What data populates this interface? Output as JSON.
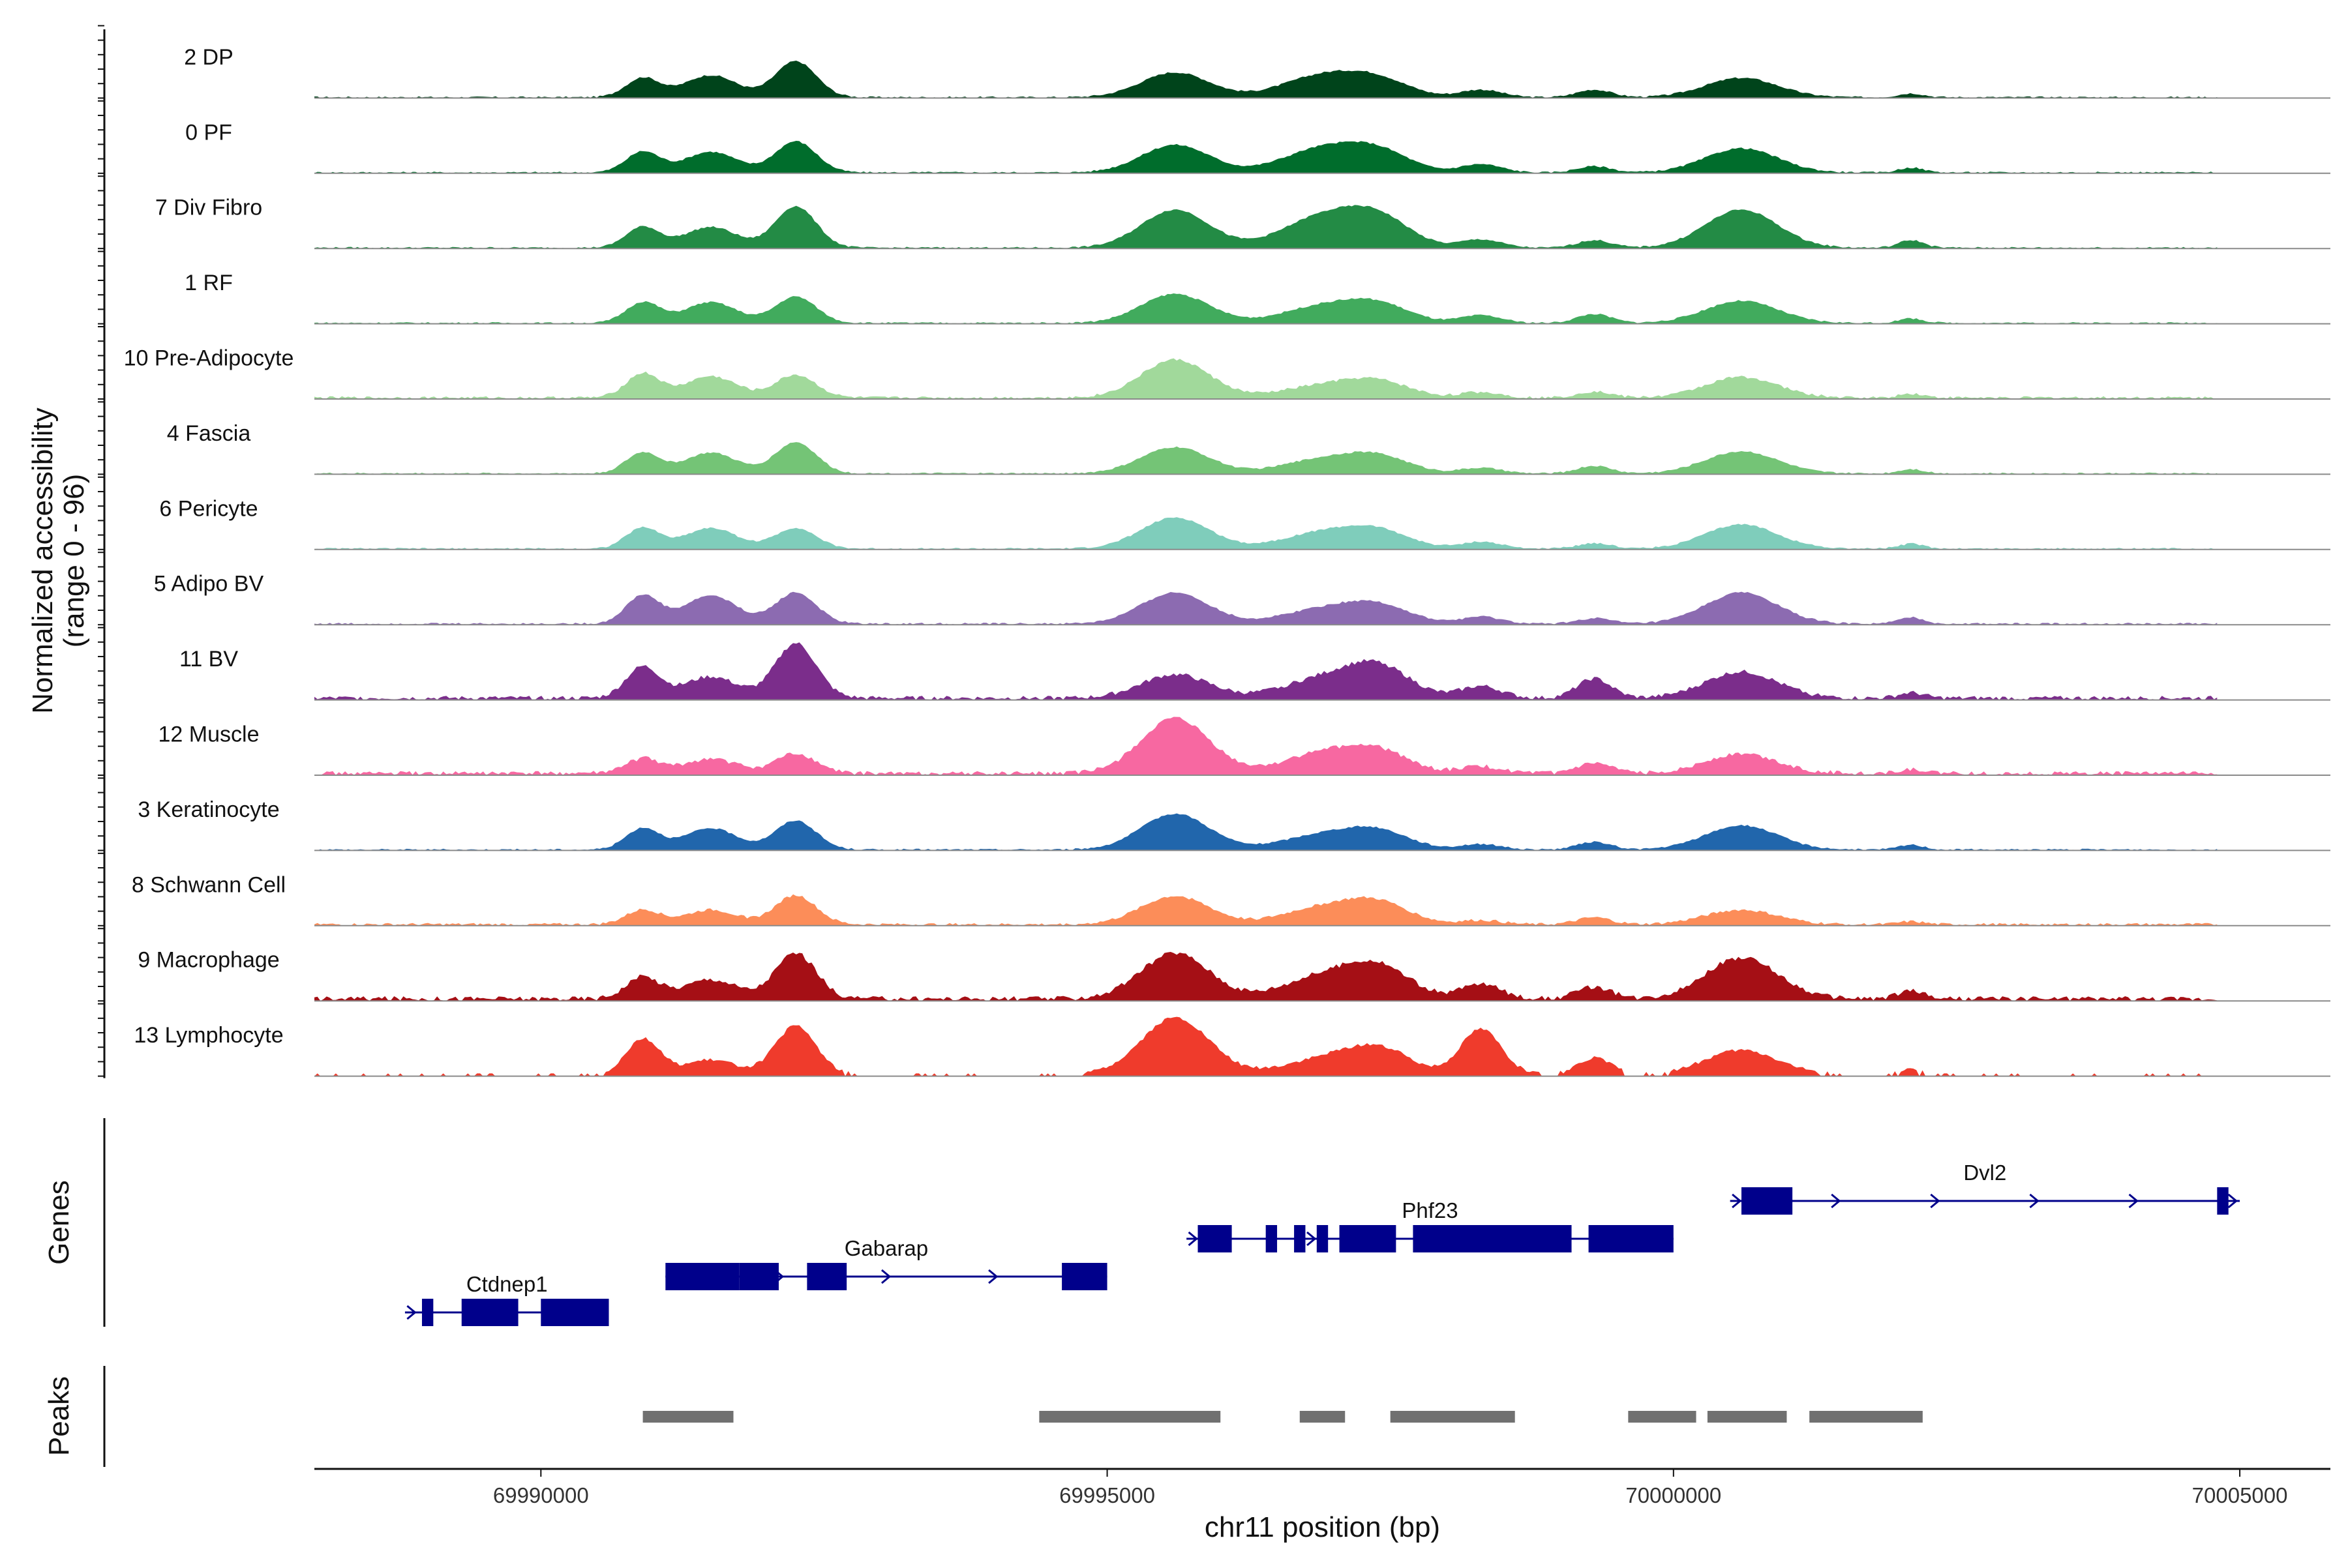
{
  "chart_data": {
    "type": "area",
    "chromosome": "chr11",
    "xlabel": "chr11 position (bp)",
    "ylabel": "Normalized accessibility",
    "ylabel_range": "(range 0 - 96)",
    "xlim": [
      69988000,
      70005800
    ],
    "x_ticks": [
      69990000,
      69995000,
      70000000,
      70005000
    ],
    "x_tick_labels": [
      "69990000",
      "69995000",
      "70000000",
      "70005000"
    ],
    "peak_regions": [
      [
        69990900,
        69991700
      ],
      [
        69994400,
        69996000
      ],
      [
        69996700,
        69997100
      ],
      [
        69997500,
        69998600
      ],
      [
        69999600,
        70000200
      ],
      [
        70000300,
        70001000
      ],
      [
        70001200,
        70002200
      ]
    ],
    "genes_track_label": "Genes",
    "peaks_track_label": "Peaks",
    "tracks": [
      {
        "label": "2 DP",
        "color": "#00441b",
        "heights": [
          0.28,
          0.32,
          0.52,
          0.36,
          0.31,
          0.22,
          0.11,
          0.11,
          0.28
        ],
        "noise": 0.025,
        "sparse": false
      },
      {
        "label": "0 PF",
        "color": "#006d2c",
        "heights": [
          0.3,
          0.3,
          0.45,
          0.4,
          0.34,
          0.27,
          0.12,
          0.09,
          0.35
        ],
        "noise": 0.025,
        "sparse": false
      },
      {
        "label": "7 Div Fibro",
        "color": "#238b45",
        "heights": [
          0.3,
          0.3,
          0.6,
          0.55,
          0.44,
          0.39,
          0.12,
          0.11,
          0.55
        ],
        "noise": 0.025,
        "sparse": false
      },
      {
        "label": "1 RF",
        "color": "#41ab5d",
        "heights": [
          0.3,
          0.3,
          0.38,
          0.42,
          0.24,
          0.24,
          0.11,
          0.13,
          0.32
        ],
        "noise": 0.025,
        "sparse": false
      },
      {
        "label": "10 Pre-Adipocyte",
        "color": "#a1d99b",
        "heights": [
          0.35,
          0.31,
          0.33,
          0.55,
          0.17,
          0.21,
          0.08,
          0.09,
          0.3
        ],
        "noise": 0.04,
        "sparse": false
      },
      {
        "label": "4 Fascia",
        "color": "#74c476",
        "heights": [
          0.3,
          0.3,
          0.45,
          0.38,
          0.2,
          0.22,
          0.08,
          0.11,
          0.32
        ],
        "noise": 0.025,
        "sparse": false
      },
      {
        "label": "6 Pericyte",
        "color": "#7fcdbb",
        "heights": [
          0.3,
          0.3,
          0.3,
          0.45,
          0.23,
          0.23,
          0.1,
          0.08,
          0.35
        ],
        "noise": 0.025,
        "sparse": false
      },
      {
        "label": "5 Adipo BV",
        "color": "#8c6bb1",
        "heights": [
          0.41,
          0.41,
          0.45,
          0.45,
          0.21,
          0.24,
          0.1,
          0.08,
          0.45
        ],
        "noise": 0.03,
        "sparse": false
      },
      {
        "label": "11 BV",
        "color": "#7b2d8b",
        "heights": [
          0.45,
          0.31,
          0.79,
          0.34,
          0.27,
          0.42,
          0.17,
          0.28,
          0.38
        ],
        "noise": 0.06,
        "sparse": false
      },
      {
        "label": "12 Muscle",
        "color": "#f768a1",
        "heights": [
          0.21,
          0.21,
          0.28,
          0.79,
          0.28,
          0.28,
          0.1,
          0.14,
          0.28
        ],
        "noise": 0.06,
        "sparse": false
      },
      {
        "label": "3 Keratinocyte",
        "color": "#2166ac",
        "heights": [
          0.31,
          0.31,
          0.42,
          0.52,
          0.21,
          0.24,
          0.08,
          0.11,
          0.35
        ],
        "noise": 0.025,
        "sparse": false
      },
      {
        "label": "8 Schwann Cell",
        "color": "#fc8d59",
        "heights": [
          0.21,
          0.21,
          0.42,
          0.41,
          0.24,
          0.28,
          0.06,
          0.1,
          0.21
        ],
        "noise": 0.04,
        "sparse": false
      },
      {
        "label": "9 Macrophage",
        "color": "#a50f15",
        "heights": [
          0.31,
          0.28,
          0.66,
          0.66,
          0.31,
          0.42,
          0.21,
          0.17,
          0.59
        ],
        "noise": 0.07,
        "sparse": false
      },
      {
        "label": "13 Lymphocyte",
        "color": "#ef3b2c",
        "heights": [
          0.52,
          0.21,
          0.7,
          0.82,
          0.21,
          0.35,
          0.66,
          0.24,
          0.35
        ],
        "noise": 0.05,
        "sparse": true
      }
    ],
    "genes": [
      {
        "name": "Ctdnep1",
        "start": 69988800,
        "end": 69990600,
        "strand": "+",
        "row": 0,
        "exons": [
          [
            69988950,
            69989050
          ],
          [
            69989300,
            69989800
          ],
          [
            69990000,
            69990600
          ]
        ]
      },
      {
        "name": "Gabarap",
        "start": 69991100,
        "end": 69995000,
        "strand": "+",
        "row": 1,
        "exons": [
          [
            69991100,
            69991750
          ],
          [
            69991750,
            69992100
          ],
          [
            69992350,
            69992700
          ],
          [
            69994600,
            69995000
          ]
        ]
      },
      {
        "name": "Phf23",
        "start": 69995700,
        "end": 70000000,
        "strand": "+",
        "row": 2,
        "exons": [
          [
            69995800,
            69996100
          ],
          [
            69996400,
            69996500
          ],
          [
            69996650,
            69996750
          ],
          [
            69996850,
            69996950
          ],
          [
            69997050,
            69997550
          ],
          [
            69997700,
            69999100
          ],
          [
            69999250,
            70000000
          ]
        ]
      },
      {
        "name": "Dvl2",
        "start": 70000500,
        "end": 70005000,
        "strand": "+",
        "row": 3,
        "exons": [
          [
            70000600,
            70001050
          ],
          [
            70004800,
            70004900
          ]
        ]
      }
    ]
  }
}
